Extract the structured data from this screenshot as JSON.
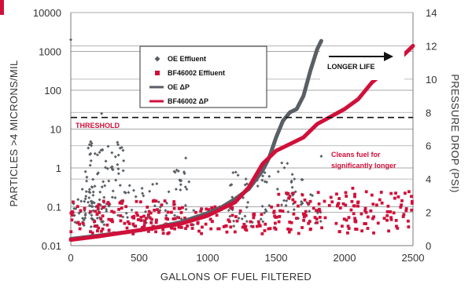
{
  "chart_data": {
    "type": "scatter",
    "xlabel": "GALLONS OF FUEL FILTERED",
    "ylabel_left": "PARTICLES >4 MICRONS/MIL",
    "ylabel_right": "PRESSURE DROP (PSI)",
    "xlim": [
      0,
      2500
    ],
    "x_ticks": [
      "0",
      "500",
      "1000",
      "1500",
      "2000",
      "2500"
    ],
    "x_tick_values": [
      0,
      500,
      1000,
      1500,
      2000,
      2500
    ],
    "left_scale": "log",
    "ylim_left": [
      0.01,
      10000
    ],
    "left_ticks": [
      "0.01",
      "0.1",
      "1",
      "10",
      "100",
      "1000",
      "10000"
    ],
    "left_tick_values": [
      0.01,
      0.1,
      1,
      10,
      100,
      1000,
      10000
    ],
    "ylim_right": [
      0,
      14
    ],
    "right_ticks": [
      "0",
      "2",
      "4",
      "6",
      "8",
      "10",
      "12",
      "14"
    ],
    "right_tick_values": [
      0,
      2,
      4,
      6,
      8,
      10,
      12,
      14
    ],
    "grid": "horizontal",
    "legend_position": "top-left",
    "threshold": {
      "label": "THRESHOLD",
      "value_psi": 7.7
    },
    "annotations": {
      "longer_life": "LONGER LIFE",
      "cleans_line1": "Cleans fuel for",
      "cleans_line2": "significantly longer"
    },
    "series": [
      {
        "name": "OE Effluent",
        "kind": "scatter",
        "axis": "left",
        "marker": "diamond",
        "color": "#5a5f66",
        "clusters": [
          {
            "x_range": [
              0,
              250
            ],
            "y_range": [
              0.03,
              0.3
            ],
            "count": 60
          },
          {
            "x_range": [
              100,
              400
            ],
            "y_range": [
              0.05,
              5
            ],
            "count": 70
          },
          {
            "x_range": [
              400,
              900
            ],
            "y_range": [
              0.03,
              0.5
            ],
            "count": 50
          },
          {
            "x_range": [
              750,
              850
            ],
            "y_range": [
              0.1,
              1.5
            ],
            "count": 12
          },
          {
            "x_range": [
              1150,
              1450
            ],
            "y_range": [
              0.03,
              0.8
            ],
            "count": 45
          },
          {
            "x_range": [
              1500,
              1700
            ],
            "y_range": [
              0.05,
              1.5
            ],
            "count": 30
          },
          {
            "x_range": [
              1700,
              1830
            ],
            "y_range": [
              0.03,
              0.3
            ],
            "count": 12
          }
        ],
        "outliers": [
          [
            0,
            2000
          ],
          [
            225,
            25
          ],
          [
            345,
            4
          ],
          [
            1830,
            2
          ],
          [
            840,
            1.8
          ]
        ]
      },
      {
        "name": "BF46002 Effluent",
        "kind": "scatter",
        "axis": "left",
        "marker": "square",
        "color": "#d0103a",
        "clusters": [
          {
            "x_range": [
              0,
              800
            ],
            "y_range": [
              0.02,
              0.15
            ],
            "count": 130
          },
          {
            "x_range": [
              800,
              1500
            ],
            "y_range": [
              0.02,
              0.1
            ],
            "count": 80
          },
          {
            "x_range": [
              1500,
              2500
            ],
            "y_range": [
              0.02,
              0.25
            ],
            "count": 140
          }
        ],
        "outliers": [
          [
            2340,
            0.22
          ],
          [
            2060,
            0.3
          ],
          [
            2200,
            0.2
          ],
          [
            2450,
            0.08
          ]
        ]
      },
      {
        "name": "OE ΔP",
        "kind": "line",
        "axis": "right",
        "color": "#5a5f66",
        "x": [
          0,
          200,
          400,
          600,
          800,
          1000,
          1100,
          1200,
          1300,
          1400,
          1450,
          1500,
          1550,
          1600,
          1650,
          1700,
          1750,
          1800,
          1830
        ],
        "y": [
          0.4,
          0.6,
          0.8,
          1.05,
          1.4,
          1.95,
          2.3,
          2.8,
          3.4,
          4.5,
          5.3,
          6.5,
          7.5,
          8.0,
          8.2,
          9.0,
          10.5,
          11.8,
          12.3
        ]
      },
      {
        "name": "BF46002 ΔP",
        "kind": "line",
        "axis": "right",
        "color": "#d0103a",
        "x": [
          0,
          200,
          400,
          600,
          800,
          1000,
          1200,
          1300,
          1400,
          1500,
          1600,
          1700,
          1800,
          2000,
          2100,
          2200,
          2300,
          2400,
          2500
        ],
        "y": [
          0.35,
          0.55,
          0.8,
          1.05,
          1.3,
          1.8,
          2.6,
          3.5,
          4.9,
          5.7,
          6.1,
          6.5,
          7.3,
          8.2,
          8.8,
          9.8,
          10.5,
          11.2,
          12.0
        ]
      }
    ]
  }
}
